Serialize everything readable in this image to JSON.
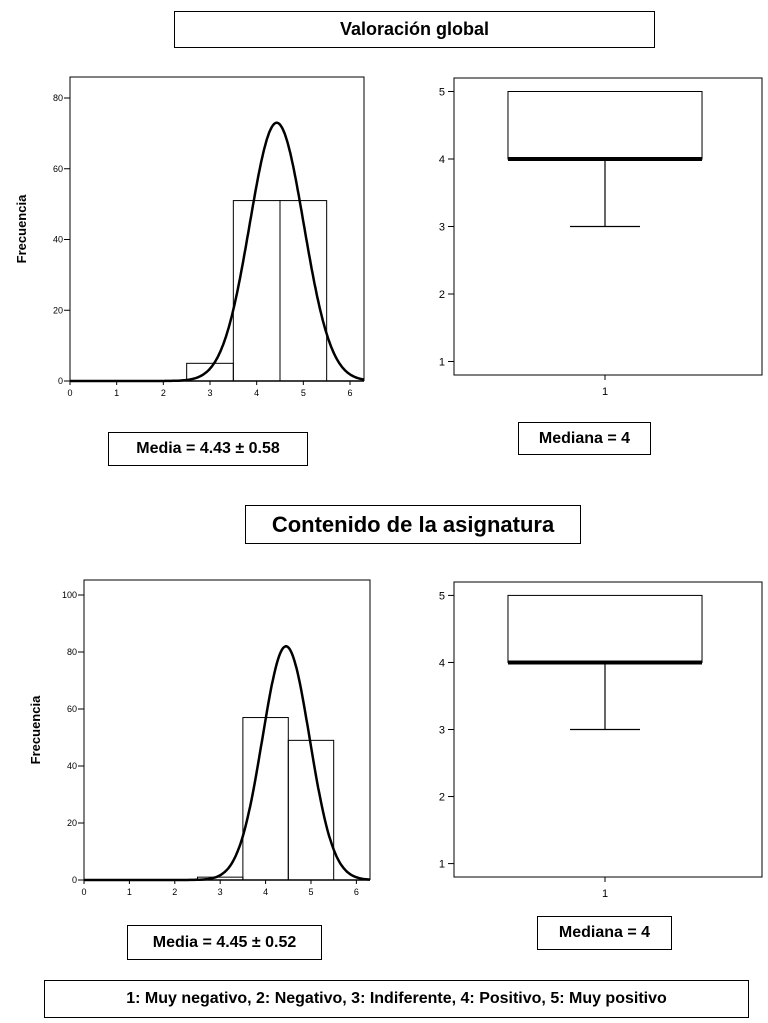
{
  "section1": {
    "title": "Valoración global",
    "media_label": "Media = 4.43 ± 0.58",
    "mediana_label": "Mediana = 4"
  },
  "section2": {
    "title": "Contenido de la asignatura",
    "media_label": "Media = 4.45 ± 0.52",
    "mediana_label": "Mediana = 4"
  },
  "legend_text": "1: Muy negativo, 2: Negativo, 3: Indiferente, 4: Positivo, 5: Muy positivo",
  "chart_data": [
    {
      "type": "bar",
      "ylabel": "Frecuencia",
      "xlim": [
        0,
        6.3
      ],
      "ylim": [
        0,
        80
      ],
      "xticks": [
        0,
        1,
        2,
        3,
        4,
        5,
        6
      ],
      "yticks": [
        0,
        20,
        40,
        60,
        80
      ],
      "bins": [
        {
          "x0": 2.5,
          "x1": 3.5,
          "value": 5
        },
        {
          "x0": 3.5,
          "x1": 4.5,
          "value": 51
        },
        {
          "x0": 4.5,
          "x1": 5.5,
          "value": 51
        }
      ],
      "normal_curve": {
        "mean": 4.43,
        "sd": 0.58,
        "peak": 73
      }
    },
    {
      "type": "boxplot",
      "category": "1",
      "ylim": [
        0.8,
        5.2
      ],
      "yticks": [
        1,
        2,
        3,
        4,
        5
      ],
      "min": 3,
      "q1": 4,
      "median": 4,
      "q3": 5,
      "max": 5
    },
    {
      "type": "bar",
      "ylabel": "Frecuencia",
      "xlim": [
        0,
        6.3
      ],
      "ylim": [
        0,
        100
      ],
      "xticks": [
        0,
        1,
        2,
        3,
        4,
        5,
        6
      ],
      "yticks": [
        0,
        20,
        40,
        60,
        80,
        100
      ],
      "bins": [
        {
          "x0": 2.5,
          "x1": 3.5,
          "value": 1
        },
        {
          "x0": 3.5,
          "x1": 4.5,
          "value": 57
        },
        {
          "x0": 4.5,
          "x1": 5.5,
          "value": 49
        }
      ],
      "normal_curve": {
        "mean": 4.45,
        "sd": 0.52,
        "peak": 82
      }
    },
    {
      "type": "boxplot",
      "category": "1",
      "ylim": [
        0.8,
        5.2
      ],
      "yticks": [
        1,
        2,
        3,
        4,
        5
      ],
      "min": 3,
      "q1": 4,
      "median": 4,
      "q3": 5,
      "max": 5
    }
  ]
}
